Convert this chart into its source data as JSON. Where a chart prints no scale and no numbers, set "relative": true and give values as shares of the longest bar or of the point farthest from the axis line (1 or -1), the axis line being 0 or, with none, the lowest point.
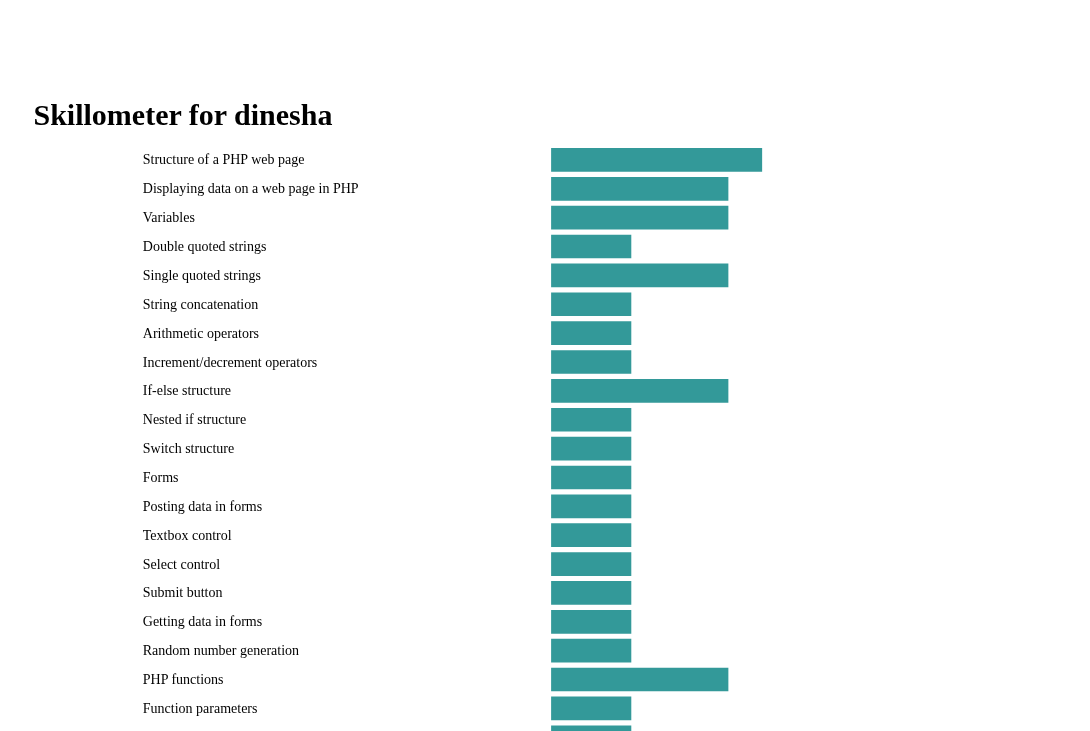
{
  "chart_data": {
    "type": "bar",
    "orientation": "horizontal",
    "relative": true,
    "title": "Skillometer for dinesha",
    "color": "#339999",
    "categories": [
      "Structure of a PHP web page",
      "Displaying data on a web page in PHP",
      "Variables",
      "Double quoted strings",
      "Single quoted strings",
      "String concatenation",
      "Arithmetic operators",
      "Increment/decrement operators",
      "If-else structure",
      "Nested if structure",
      "Switch structure",
      "Forms",
      "Posting data in forms",
      "Textbox control",
      "Select control",
      "Submit button",
      "Getting data in forms",
      "Random number generation",
      "PHP functions",
      "Function parameters",
      null
    ],
    "values": [
      1,
      0.84,
      0.84,
      0.38,
      0.84,
      0.38,
      0.38,
      0.38,
      0.84,
      0.38,
      0.38,
      0.38,
      0.38,
      0.38,
      0.38,
      0.38,
      0.38,
      0.38,
      0.84,
      0.38,
      0.38
    ]
  }
}
